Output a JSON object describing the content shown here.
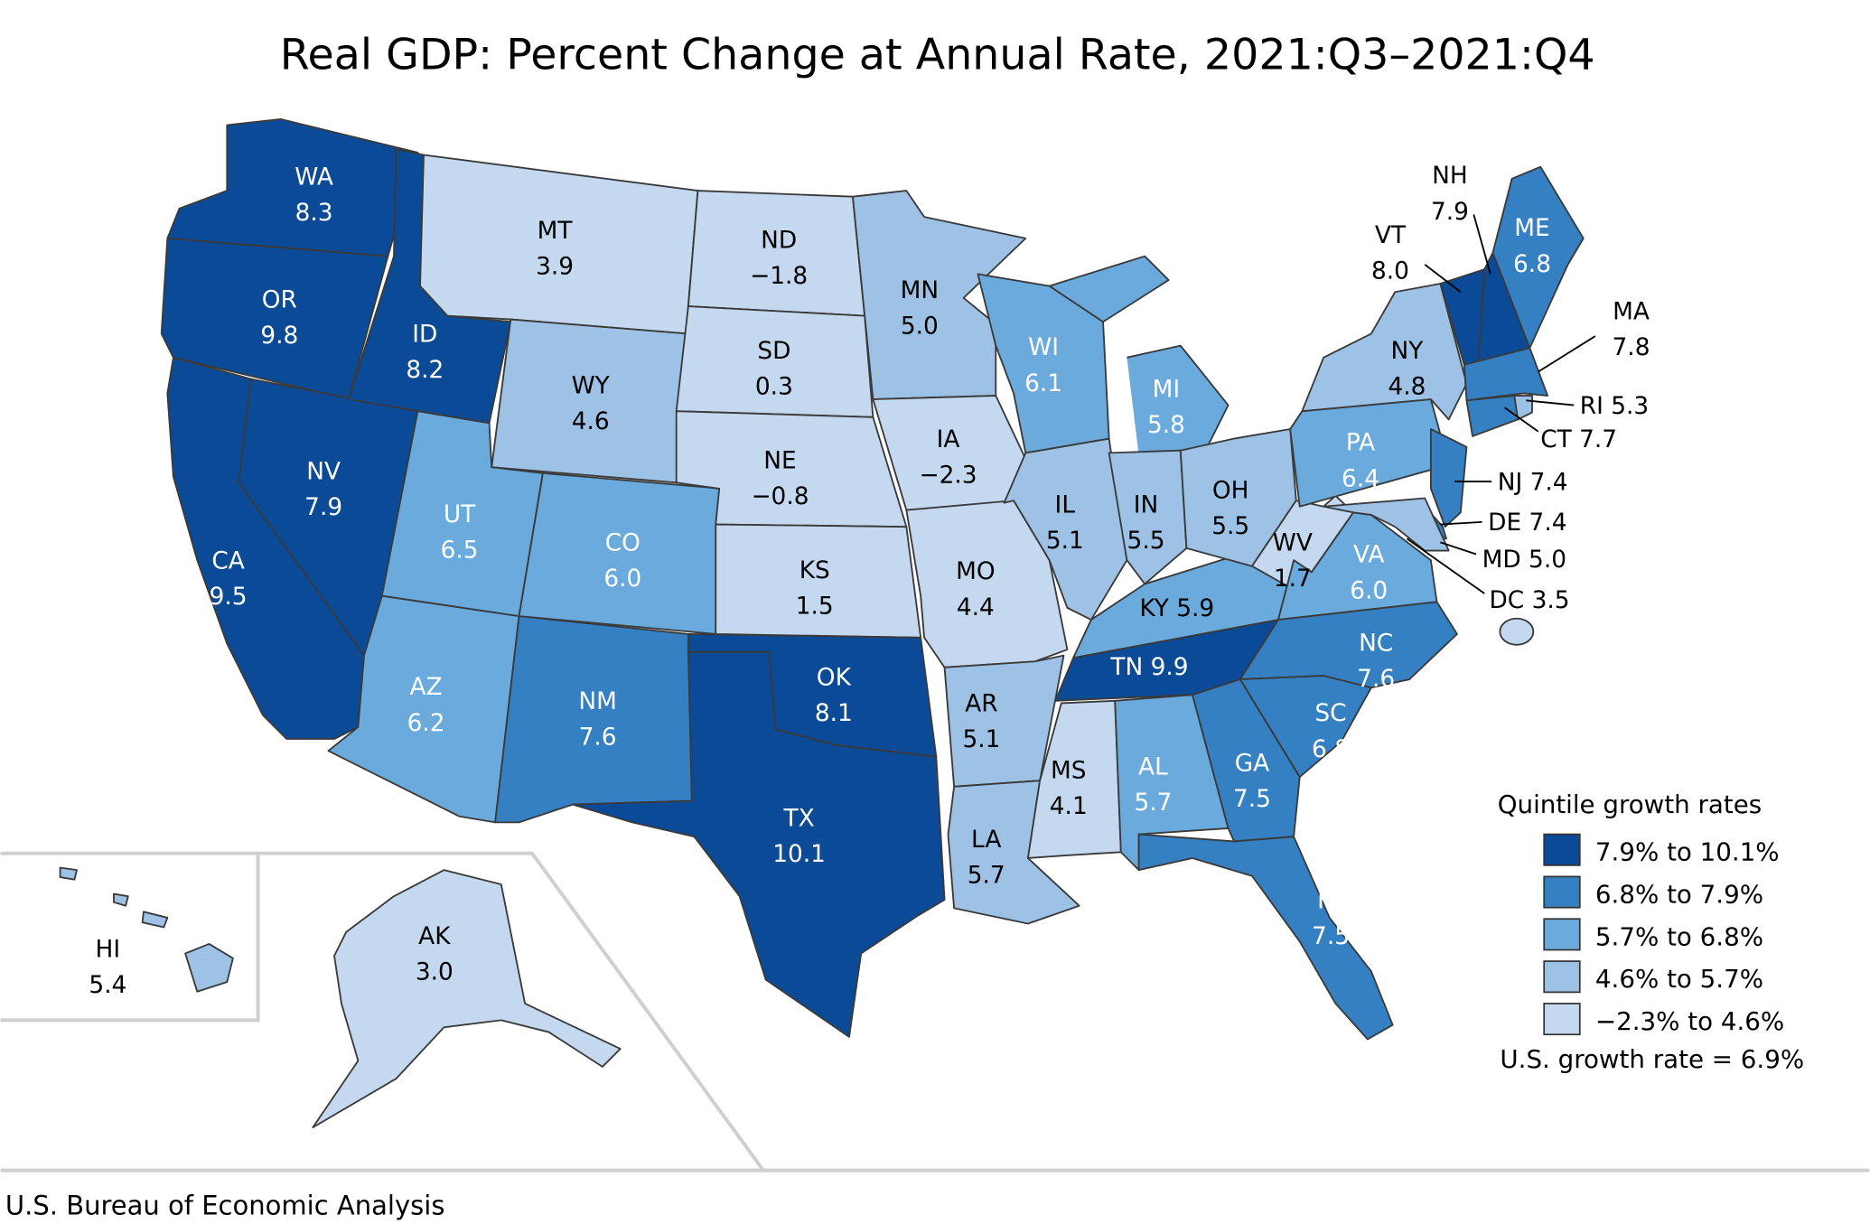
{
  "title": "Real GDP: Percent Change at Annual Rate, 2021:Q3–2021:Q4",
  "source": "U.S. Bureau of Economic Analysis",
  "legend": {
    "title": "Quintile growth rates",
    "items": [
      {
        "label": "7.9% to 10.1%",
        "color": "#0b4a96"
      },
      {
        "label": "6.8% to 7.9%",
        "color": "#3480c2"
      },
      {
        "label": "5.7% to 6.8%",
        "color": "#6aaadc"
      },
      {
        "label": "4.6% to 5.7%",
        "color": "#9dc2e6"
      },
      {
        "label": "−2.3% to 4.6%",
        "color": "#c4d8f0"
      }
    ],
    "us_rate": "U.S. growth rate = 6.9%"
  },
  "states": [
    {
      "abbr": "WA",
      "value": "8.3",
      "bucket": 0
    },
    {
      "abbr": "OR",
      "value": "9.8",
      "bucket": 0
    },
    {
      "abbr": "CA",
      "value": "9.5",
      "bucket": 0
    },
    {
      "abbr": "NV",
      "value": "7.9",
      "bucket": 0
    },
    {
      "abbr": "ID",
      "value": "8.2",
      "bucket": 0
    },
    {
      "abbr": "MT",
      "value": "3.9",
      "bucket": 4
    },
    {
      "abbr": "WY",
      "value": "4.6",
      "bucket": 3
    },
    {
      "abbr": "UT",
      "value": "6.5",
      "bucket": 2
    },
    {
      "abbr": "CO",
      "value": "6.0",
      "bucket": 2
    },
    {
      "abbr": "AZ",
      "value": "6.2",
      "bucket": 2
    },
    {
      "abbr": "NM",
      "value": "7.6",
      "bucket": 1
    },
    {
      "abbr": "ND",
      "value": "−1.8",
      "bucket": 4
    },
    {
      "abbr": "SD",
      "value": "0.3",
      "bucket": 4
    },
    {
      "abbr": "NE",
      "value": "−0.8",
      "bucket": 4
    },
    {
      "abbr": "KS",
      "value": "1.5",
      "bucket": 4
    },
    {
      "abbr": "OK",
      "value": "8.1",
      "bucket": 0
    },
    {
      "abbr": "TX",
      "value": "10.1",
      "bucket": 0
    },
    {
      "abbr": "MN",
      "value": "5.0",
      "bucket": 3
    },
    {
      "abbr": "IA",
      "value": "−2.3",
      "bucket": 4
    },
    {
      "abbr": "MO",
      "value": "4.4",
      "bucket": 4
    },
    {
      "abbr": "AR",
      "value": "5.1",
      "bucket": 3
    },
    {
      "abbr": "LA",
      "value": "5.7",
      "bucket": 3
    },
    {
      "abbr": "MS",
      "value": "4.1",
      "bucket": 4
    },
    {
      "abbr": "AL",
      "value": "5.7",
      "bucket": 2
    },
    {
      "abbr": "TN",
      "value": "9.9",
      "bucket": 0
    },
    {
      "abbr": "KY",
      "value": "5.9",
      "bucket": 2
    },
    {
      "abbr": "IL",
      "value": "5.1",
      "bucket": 3
    },
    {
      "abbr": "WI",
      "value": "6.1",
      "bucket": 2
    },
    {
      "abbr": "MI",
      "value": "5.8",
      "bucket": 2
    },
    {
      "abbr": "IN",
      "value": "5.5",
      "bucket": 3
    },
    {
      "abbr": "OH",
      "value": "5.5",
      "bucket": 3
    },
    {
      "abbr": "WV",
      "value": "1.7",
      "bucket": 4
    },
    {
      "abbr": "VA",
      "value": "6.0",
      "bucket": 2
    },
    {
      "abbr": "NC",
      "value": "7.6",
      "bucket": 1
    },
    {
      "abbr": "SC",
      "value": "6.8",
      "bucket": 1
    },
    {
      "abbr": "GA",
      "value": "7.5",
      "bucket": 1
    },
    {
      "abbr": "FL",
      "value": "7.5",
      "bucket": 1
    },
    {
      "abbr": "PA",
      "value": "6.4",
      "bucket": 2
    },
    {
      "abbr": "NY",
      "value": "4.8",
      "bucket": 3
    },
    {
      "abbr": "VT",
      "value": "8.0",
      "bucket": 0
    },
    {
      "abbr": "NH",
      "value": "7.9",
      "bucket": 0
    },
    {
      "abbr": "ME",
      "value": "6.8",
      "bucket": 1
    },
    {
      "abbr": "MA",
      "value": "7.8",
      "bucket": 1
    },
    {
      "abbr": "RI",
      "value": "5.3",
      "bucket": 3
    },
    {
      "abbr": "CT",
      "value": "7.7",
      "bucket": 1
    },
    {
      "abbr": "NJ",
      "value": "7.4",
      "bucket": 1
    },
    {
      "abbr": "DE",
      "value": "7.4",
      "bucket": 1
    },
    {
      "abbr": "MD",
      "value": "5.0",
      "bucket": 3
    },
    {
      "abbr": "DC",
      "value": "3.5",
      "bucket": 4
    },
    {
      "abbr": "HI",
      "value": "5.4",
      "bucket": 3
    },
    {
      "abbr": "AK",
      "value": "3.0",
      "bucket": 4
    }
  ]
}
